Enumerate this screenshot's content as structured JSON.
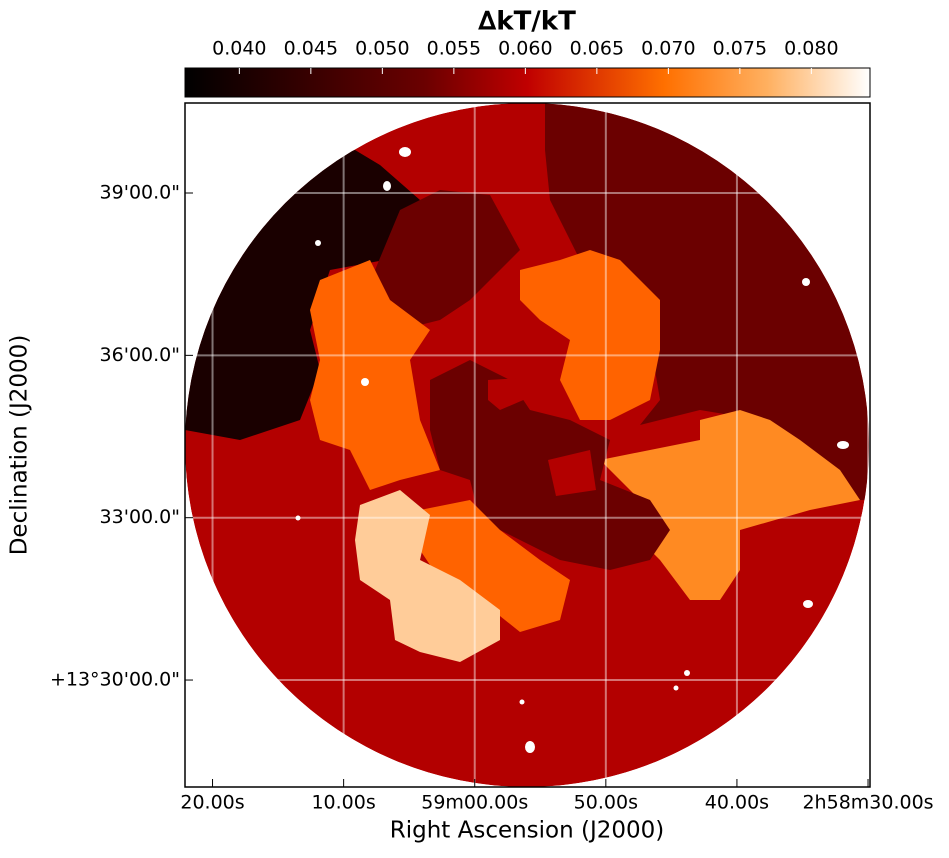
{
  "chart_data": {
    "type": "map",
    "title": "∆kT/kT",
    "x_label": "Right Ascension (J2000)",
    "y_label": "Declination (J2000)",
    "colorbar_lim": [
      0.0362,
      0.0841
    ],
    "colorbar_ticks": [
      {
        "value": 0.04,
        "label": "0.040"
      },
      {
        "value": 0.045,
        "label": "0.045"
      },
      {
        "value": 0.05,
        "label": "0.050"
      },
      {
        "value": 0.055,
        "label": "0.055"
      },
      {
        "value": 0.06,
        "label": "0.060"
      },
      {
        "value": 0.065,
        "label": "0.065"
      },
      {
        "value": 0.07,
        "label": "0.070"
      },
      {
        "value": 0.075,
        "label": "0.075"
      },
      {
        "value": 0.08,
        "label": "0.080"
      }
    ],
    "xlim": [
      10762.1,
      10709.85
    ],
    "xticks": [
      {
        "value": 10760,
        "label": "20.00s"
      },
      {
        "value": 10750,
        "label": "10.00s"
      },
      {
        "value": 10740,
        "label": "59m00.00s"
      },
      {
        "value": 10730,
        "label": "50.00s"
      },
      {
        "value": 10720,
        "label": "40.00s"
      },
      {
        "value": 10710,
        "label": "2h58m30.00s"
      }
    ],
    "ylim": [
      48481.4,
      49239.8
    ],
    "yticks": [
      {
        "value": 49140,
        "label": "39'00.0\""
      },
      {
        "value": 48960,
        "label": "36'00.0\""
      },
      {
        "value": 48780,
        "label": "33'00.0\""
      },
      {
        "value": 48600,
        "label": "+13°30'00.0\""
      }
    ],
    "grid": true,
    "regions": [
      {
        "value": 0.058,
        "color": "#b30000"
      },
      {
        "value": 0.037,
        "color": "#1a0000"
      },
      {
        "value": 0.05,
        "color": "#6b0000"
      },
      {
        "value": 0.05,
        "color": "#6b0000"
      },
      {
        "value": 0.066,
        "color": "#ff6300"
      },
      {
        "value": 0.066,
        "color": "#ff6300"
      },
      {
        "value": 0.068,
        "color": "#ff8a22"
      },
      {
        "value": 0.05,
        "color": "#6b0000"
      },
      {
        "value": 0.058,
        "color": "#b30000"
      },
      {
        "value": 0.058,
        "color": "#b30000"
      },
      {
        "value": 0.066,
        "color": "#ff6300"
      },
      {
        "value": 0.079,
        "color": "#ffcc99"
      }
    ]
  }
}
